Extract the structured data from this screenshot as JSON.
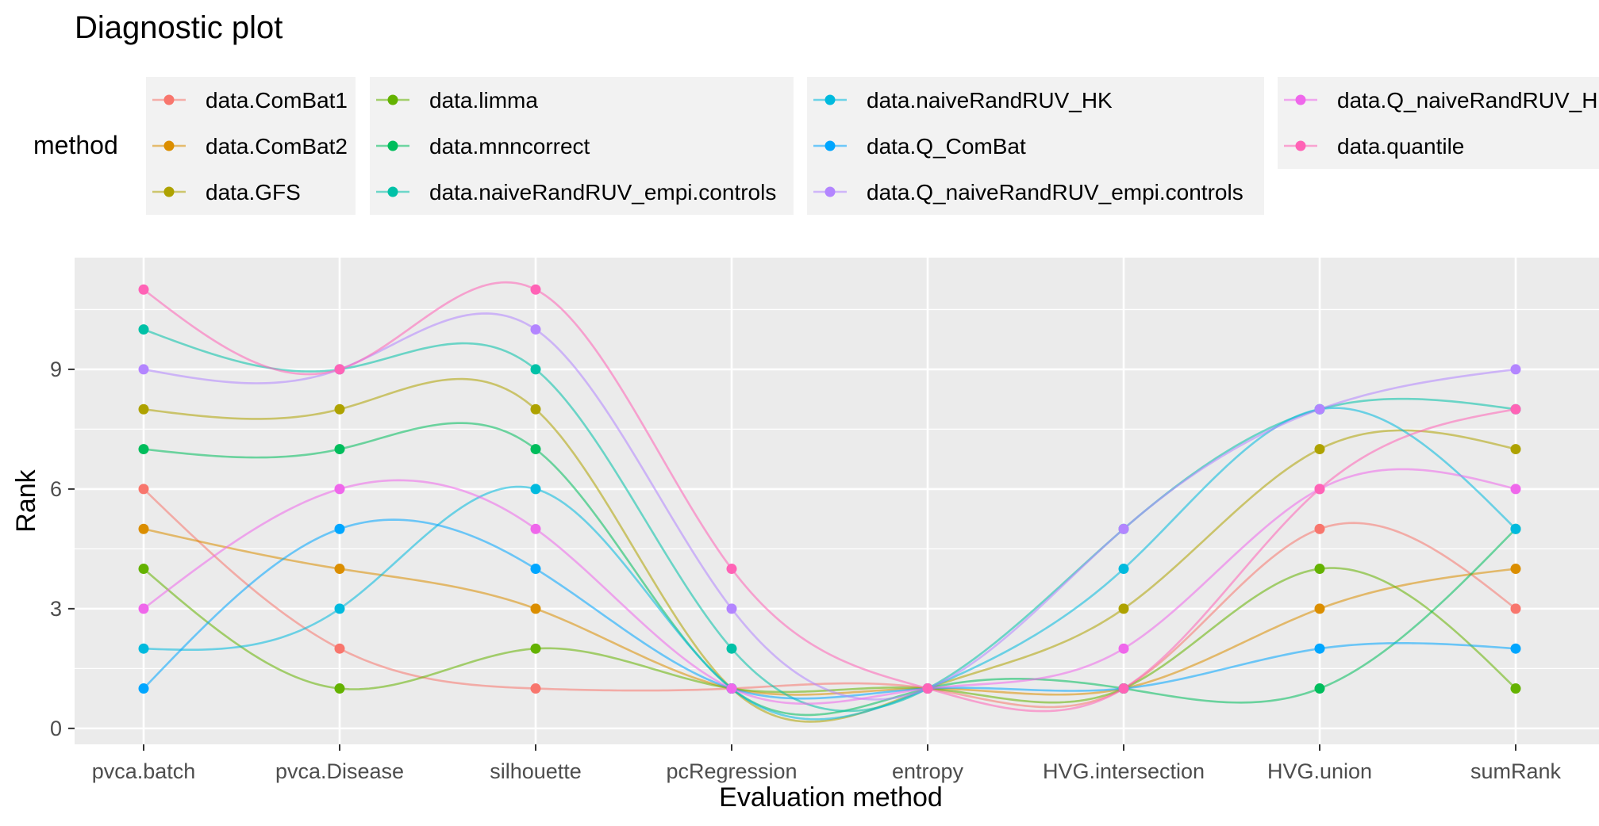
{
  "chart_data": {
    "type": "line",
    "title": "Diagnostic plot",
    "xlabel": "Evaluation method",
    "ylabel": "Rank",
    "categories": [
      "pvca.batch",
      "pvca.Disease",
      "silhouette",
      "pcRegression",
      "entropy",
      "HVG.intersection",
      "HVG.union",
      "sumRank"
    ],
    "ylim": [
      -0.4,
      11.8
    ],
    "yticks": [
      0,
      3,
      6,
      9
    ],
    "grid": true,
    "legend": {
      "title": "method",
      "position": "top"
    },
    "series": [
      {
        "name": "data.ComBat1",
        "color": "#F8766D",
        "values": [
          6,
          2,
          1,
          1,
          1,
          1,
          5,
          3
        ]
      },
      {
        "name": "data.ComBat2",
        "color": "#DB8E00",
        "values": [
          5,
          4,
          3,
          1,
          1,
          1,
          3,
          4
        ]
      },
      {
        "name": "data.GFS",
        "color": "#AEA200",
        "values": [
          8,
          8,
          8,
          1,
          1,
          3,
          7,
          7
        ]
      },
      {
        "name": "data.limma",
        "color": "#64B200",
        "values": [
          4,
          1,
          2,
          1,
          1,
          1,
          4,
          1
        ]
      },
      {
        "name": "data.mnncorrect",
        "color": "#00BD5C",
        "values": [
          7,
          7,
          7,
          1,
          1,
          1,
          1,
          5
        ]
      },
      {
        "name": "data.naiveRandRUV_empi.controls",
        "color": "#00C1A7",
        "values": [
          10,
          9,
          9,
          2,
          1,
          5,
          8,
          8
        ]
      },
      {
        "name": "data.naiveRandRUV_HK",
        "color": "#00BADE",
        "values": [
          2,
          3,
          6,
          1,
          1,
          4,
          8,
          5
        ]
      },
      {
        "name": "data.Q_ComBat",
        "color": "#00A6FF",
        "values": [
          1,
          5,
          4,
          1,
          1,
          1,
          2,
          2
        ]
      },
      {
        "name": "data.Q_naiveRandRUV_empi.controls",
        "color": "#B385FF",
        "values": [
          9,
          9,
          10,
          3,
          1,
          5,
          8,
          9
        ]
      },
      {
        "name": "data.Q_naiveRandRUV_HK",
        "color": "#EF67EB",
        "values": [
          3,
          6,
          5,
          1,
          1,
          2,
          6,
          6
        ]
      },
      {
        "name": "data.quantile",
        "color": "#FF63B6",
        "values": [
          11,
          9,
          11,
          4,
          1,
          1,
          6,
          8
        ]
      }
    ]
  }
}
